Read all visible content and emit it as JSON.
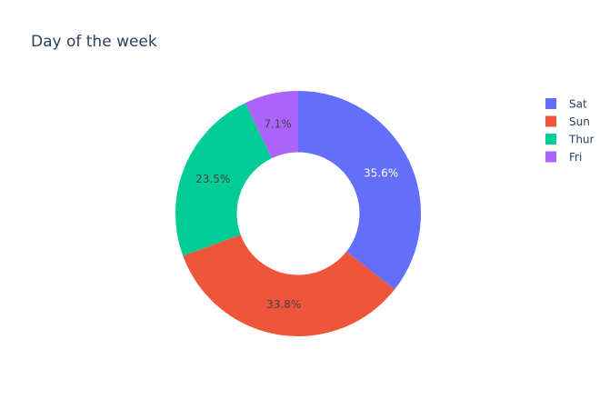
{
  "chart_data": {
    "type": "pie",
    "hole": 0.5,
    "title": "Day of the week",
    "legend_position": "top-right",
    "labels": [
      "Sat",
      "Sun",
      "Thur",
      "Fri"
    ],
    "values": [
      35.6,
      33.8,
      23.5,
      7.1
    ],
    "percent_labels": [
      "35.6%",
      "33.8%",
      "23.5%",
      "7.1%"
    ],
    "colors": [
      "#636efa",
      "#ef553b",
      "#00cc96",
      "#ab63fa"
    ],
    "label_colors": [
      "#ffffff",
      "#444444",
      "#444444",
      "#444444"
    ]
  }
}
